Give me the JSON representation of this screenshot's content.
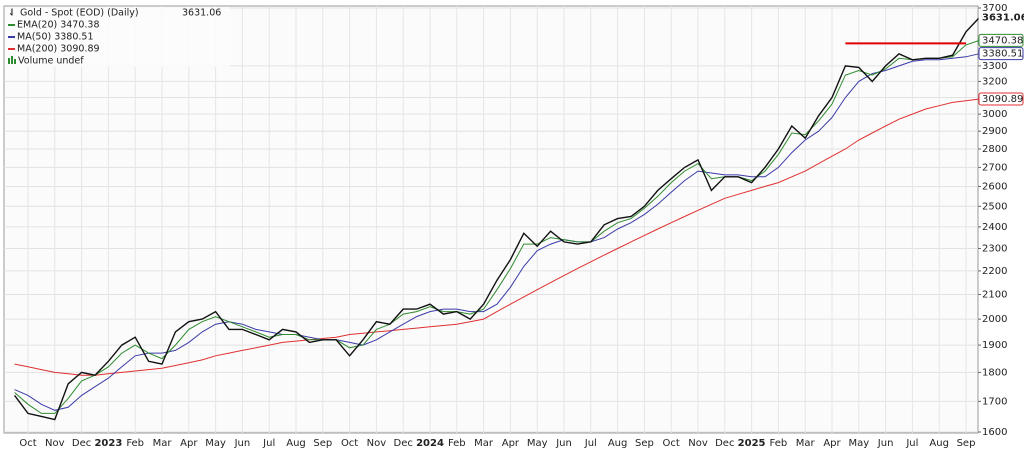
{
  "chart_data": {
    "type": "line",
    "title": "Gold - Spot (EOD) (Daily)",
    "log_scale": true,
    "grid": true,
    "categories": [
      null,
      "Oct",
      null,
      "Nov",
      null,
      "Dec",
      null,
      "2023",
      null,
      "Feb",
      null,
      "Mar",
      null,
      "Apr",
      null,
      "May",
      null,
      "Jun",
      null,
      "Jul",
      null,
      "Aug",
      null,
      "Sep",
      null,
      "Oct",
      null,
      "Nov",
      null,
      "Dec",
      null,
      "2024",
      null,
      "Feb",
      null,
      "Mar",
      null,
      "Apr",
      null,
      "May",
      null,
      "Jun",
      null,
      "Jul",
      null,
      "Aug",
      null,
      "Sep",
      null,
      "Oct",
      null,
      "Nov",
      null,
      "Dec",
      null,
      "2025",
      null,
      "Feb",
      null,
      "Mar",
      null,
      "Apr",
      null,
      "May",
      null,
      "Jun",
      null,
      "Jul",
      null,
      "Aug",
      null,
      "Sep",
      null
    ],
    "series": [
      {
        "name": "Gold - Spot (EOD) (Daily)",
        "color": "#111111",
        "values": [
          1720,
          1660,
          1650,
          1640,
          1760,
          1800,
          1790,
          1840,
          1900,
          1930,
          1840,
          1830,
          1950,
          1990,
          2000,
          2030,
          1960,
          1960,
          1940,
          1920,
          1960,
          1950,
          1910,
          1920,
          1920,
          1860,
          1920,
          1990,
          1980,
          2040,
          2040,
          2060,
          2020,
          2030,
          2000,
          2060,
          2160,
          2250,
          2370,
          2310,
          2380,
          2330,
          2320,
          2330,
          2410,
          2440,
          2450,
          2500,
          2580,
          2640,
          2700,
          2740,
          2580,
          2650,
          2650,
          2620,
          2700,
          2800,
          2930,
          2860,
          2990,
          3100,
          3300,
          3290,
          3200,
          3300,
          3380,
          3340,
          3350,
          3350,
          3370,
          3530,
          3631.06
        ]
      },
      {
        "name": "EMA(20)",
        "color": "#2e8b2e",
        "values": [
          1730,
          1690,
          1660,
          1660,
          1710,
          1770,
          1790,
          1820,
          1870,
          1900,
          1870,
          1850,
          1900,
          1960,
          1990,
          2010,
          1990,
          1970,
          1950,
          1930,
          1940,
          1940,
          1920,
          1920,
          1920,
          1890,
          1900,
          1960,
          1980,
          2020,
          2030,
          2050,
          2030,
          2030,
          2020,
          2040,
          2120,
          2210,
          2320,
          2320,
          2350,
          2340,
          2330,
          2330,
          2380,
          2420,
          2440,
          2490,
          2550,
          2620,
          2680,
          2720,
          2640,
          2650,
          2650,
          2630,
          2680,
          2770,
          2890,
          2880,
          2960,
          3060,
          3240,
          3270,
          3240,
          3280,
          3350,
          3340,
          3350,
          3350,
          3360,
          3440,
          3470.38
        ]
      },
      {
        "name": "MA(50)",
        "color": "#3b3ba8",
        "values": [
          1740,
          1720,
          1690,
          1670,
          1680,
          1720,
          1750,
          1780,
          1820,
          1860,
          1870,
          1870,
          1880,
          1910,
          1950,
          1980,
          1990,
          1980,
          1960,
          1950,
          1940,
          1940,
          1930,
          1920,
          1920,
          1910,
          1900,
          1920,
          1950,
          1980,
          2010,
          2030,
          2040,
          2040,
          2030,
          2030,
          2060,
          2130,
          2220,
          2290,
          2320,
          2340,
          2330,
          2330,
          2350,
          2390,
          2420,
          2460,
          2510,
          2570,
          2630,
          2680,
          2670,
          2660,
          2660,
          2650,
          2650,
          2700,
          2780,
          2850,
          2900,
          2980,
          3100,
          3200,
          3250,
          3270,
          3300,
          3330,
          3340,
          3340,
          3350,
          3360,
          3380.51
        ]
      },
      {
        "name": "MA(200)",
        "color": "#e03030",
        "values": [
          1830,
          1820,
          1810,
          1800,
          1795,
          1790,
          1790,
          1795,
          1800,
          1805,
          1810,
          1815,
          1825,
          1835,
          1845,
          1860,
          1870,
          1880,
          1890,
          1900,
          1910,
          1915,
          1920,
          1925,
          1930,
          1940,
          1945,
          1950,
          1955,
          1960,
          1965,
          1970,
          1975,
          1980,
          1990,
          2000,
          2030,
          2060,
          2090,
          2120,
          2150,
          2180,
          2210,
          2240,
          2270,
          2300,
          2330,
          2360,
          2390,
          2420,
          2450,
          2480,
          2510,
          2540,
          2560,
          2580,
          2600,
          2620,
          2650,
          2680,
          2720,
          2760,
          2800,
          2850,
          2890,
          2930,
          2970,
          3000,
          3030,
          3050,
          3070,
          3080,
          3090.89
        ]
      }
    ],
    "volume_legend": "Volume undef",
    "annotation_line": {
      "y": 3450,
      "x": [
        62,
        71
      ],
      "color": "#e00000"
    },
    "ylim": [
      1600,
      3700
    ],
    "yticks": [
      1600,
      1700,
      1800,
      1900,
      2000,
      2100,
      2200,
      2300,
      2400,
      2500,
      2600,
      2700,
      2800,
      2900,
      3000,
      3100,
      3200,
      3300,
      3700
    ]
  }
}
